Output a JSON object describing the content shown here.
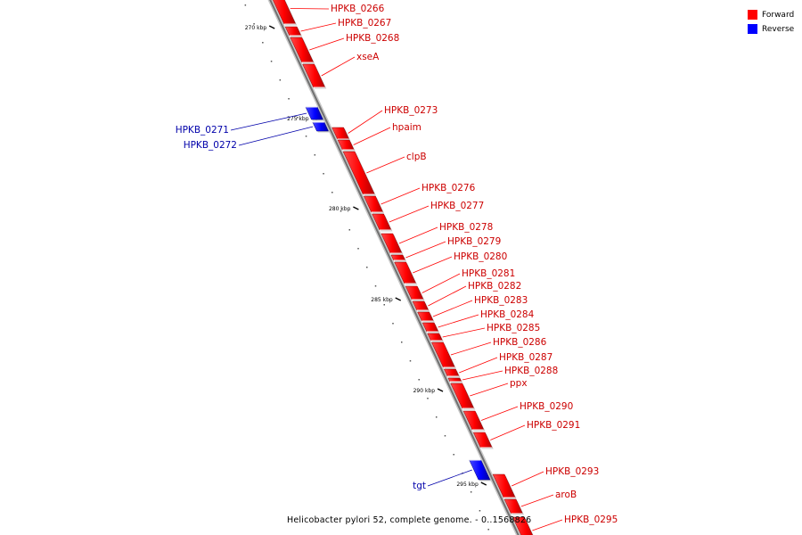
{
  "legend": [
    {
      "label": "Forward",
      "color": "#ff0000"
    },
    {
      "label": "Reverse",
      "color": "#0000ff"
    }
  ],
  "caption": "Helicobacter pylori 52, complete genome. - 0..1568826",
  "colors": {
    "forward": "#ff0000",
    "forward_label": "#cc0000",
    "reverse": "#0000ff",
    "reverse_label": "#0000aa",
    "axis": "#888888"
  },
  "axis_ticks": [
    "270 kbp",
    "275 kbp",
    "280 kbp",
    "285 kbp",
    "290 kbp",
    "295 kbp"
  ],
  "genes": [
    {
      "name": "HPKB_0266",
      "strand": "forward"
    },
    {
      "name": "HPKB_0267",
      "strand": "forward"
    },
    {
      "name": "HPKB_0268",
      "strand": "forward"
    },
    {
      "name": "xseA",
      "strand": "forward"
    },
    {
      "name": "HPKB_0271",
      "strand": "reverse"
    },
    {
      "name": "HPKB_0272",
      "strand": "reverse"
    },
    {
      "name": "HPKB_0273",
      "strand": "forward"
    },
    {
      "name": "hpaim",
      "strand": "forward"
    },
    {
      "name": "clpB",
      "strand": "forward"
    },
    {
      "name": "HPKB_0276",
      "strand": "forward"
    },
    {
      "name": "HPKB_0277",
      "strand": "forward"
    },
    {
      "name": "HPKB_0278",
      "strand": "forward"
    },
    {
      "name": "HPKB_0279",
      "strand": "forward"
    },
    {
      "name": "HPKB_0280",
      "strand": "forward"
    },
    {
      "name": "HPKB_0281",
      "strand": "forward"
    },
    {
      "name": "HPKB_0282",
      "strand": "forward"
    },
    {
      "name": "HPKB_0283",
      "strand": "forward"
    },
    {
      "name": "HPKB_0284",
      "strand": "forward"
    },
    {
      "name": "HPKB_0285",
      "strand": "forward"
    },
    {
      "name": "HPKB_0286",
      "strand": "forward"
    },
    {
      "name": "HPKB_0287",
      "strand": "forward"
    },
    {
      "name": "HPKB_0288",
      "strand": "forward"
    },
    {
      "name": "ppx",
      "strand": "forward"
    },
    {
      "name": "HPKB_0290",
      "strand": "forward"
    },
    {
      "name": "HPKB_0291",
      "strand": "forward"
    },
    {
      "name": "tgt",
      "strand": "reverse"
    },
    {
      "name": "HPKB_0293",
      "strand": "forward"
    },
    {
      "name": "aroB",
      "strand": "forward"
    },
    {
      "name": "HPKB_0295",
      "strand": "forward"
    }
  ]
}
